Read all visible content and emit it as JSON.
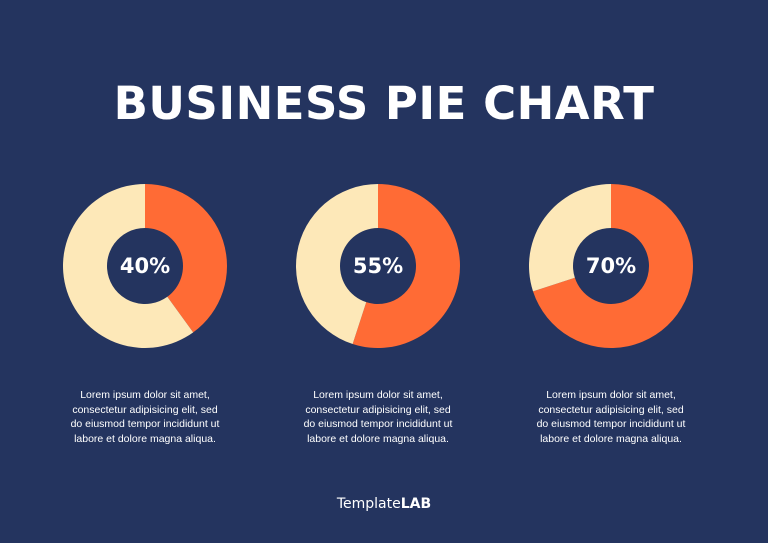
{
  "title": "BUSINESS PIE CHART",
  "colors": {
    "background": "#24345f",
    "accent": "#ff6b35",
    "remainder": "#fde8b8",
    "text": "#ffffff"
  },
  "chart_data": [
    {
      "type": "pie",
      "slices": [
        {
          "value": 40,
          "color": "#ff6b35"
        },
        {
          "value": 60,
          "color": "#fde8b8"
        }
      ],
      "center_label": "40%",
      "description": "Lorem ipsum dolor sit amet,\nconsectetur adipisicing elit, sed\ndo eiusmod tempor incididunt ut\nlabore et dolore magna aliqua."
    },
    {
      "type": "pie",
      "slices": [
        {
          "value": 55,
          "color": "#ff6b35"
        },
        {
          "value": 45,
          "color": "#fde8b8"
        }
      ],
      "center_label": "55%",
      "description": "Lorem ipsum dolor sit amet,\nconsectetur adipisicing elit, sed\ndo eiusmod tempor incididunt ut\nlabore et dolore magna aliqua."
    },
    {
      "type": "pie",
      "slices": [
        {
          "value": 70,
          "color": "#ff6b35"
        },
        {
          "value": 30,
          "color": "#fde8b8"
        }
      ],
      "center_label": "70%",
      "description": "Lorem ipsum dolor sit amet,\nconsectetur adipisicing elit, sed\ndo eiusmod tempor incididunt ut\nlabore et dolore magna aliqua."
    }
  ],
  "brand": {
    "part1": "Template",
    "part2": "LAB"
  }
}
